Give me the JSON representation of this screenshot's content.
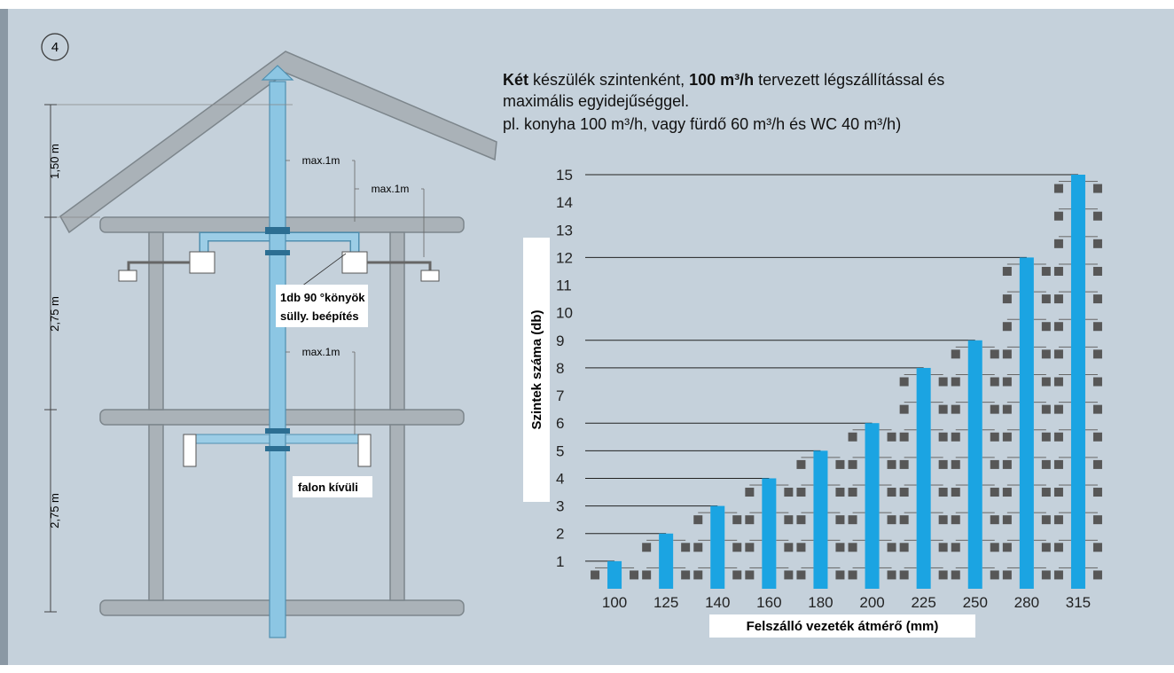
{
  "badge": "4",
  "description": {
    "line1_parts": [
      "Két",
      " készülék szintenként, ",
      "100 m³/h",
      " tervezett légszállítással és"
    ],
    "line2": "maximális egyidejűséggel.",
    "line3": "pl. konyha 100 m³/h, vagy fürdő 60 m³/h és WC 40 m³/h)"
  },
  "diagram": {
    "dimensions": [
      "1,50 m",
      "2,75 m",
      "2,75 m"
    ],
    "distances": [
      "max.1m",
      "max.1m",
      "max.1m"
    ],
    "elbow_note": [
      "1db 90 °könyök",
      "sülly. beépítés"
    ],
    "wall_note": "falon kívüli"
  },
  "chart_data": {
    "type": "bar",
    "x_label": "Felszálló vezeték átmérő (mm)",
    "y_label": "Szintek száma (db)",
    "categories": [
      "100",
      "125",
      "140",
      "160",
      "180",
      "200",
      "225",
      "250",
      "280",
      "315"
    ],
    "values": [
      1,
      2,
      3,
      4,
      5,
      6,
      8,
      9,
      12,
      15
    ],
    "color": "#1ba4e2",
    "device_color": "#575757",
    "ylim": [
      0,
      15
    ],
    "yticks": [
      1,
      2,
      3,
      4,
      5,
      6,
      7,
      8,
      9,
      10,
      11,
      12,
      13,
      14,
      15
    ]
  }
}
